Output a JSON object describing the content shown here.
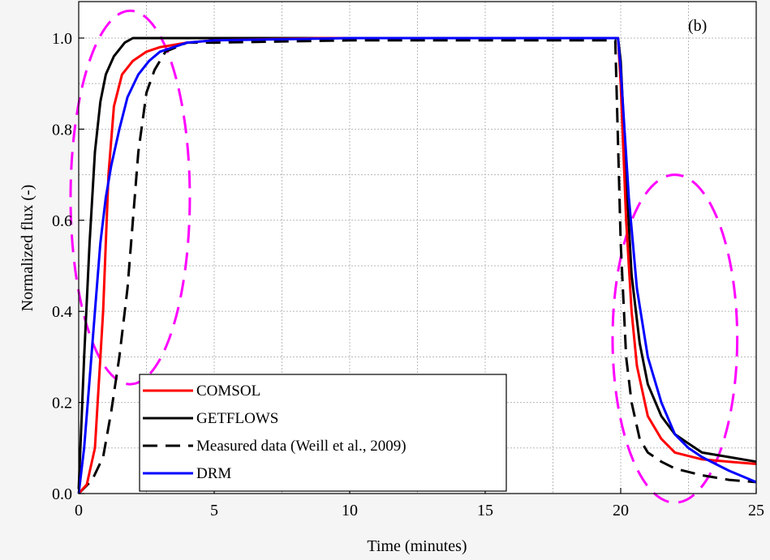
{
  "chart_data": {
    "type": "line",
    "title": "",
    "panel_label": "(b)",
    "xlabel": "Time (minutes)",
    "ylabel": "Normalized flux (-)",
    "xlim": [
      0,
      25
    ],
    "ylim": [
      0,
      1.08
    ],
    "x_ticks": [
      0,
      5,
      10,
      15,
      20,
      25
    ],
    "x_tick_labels": [
      "0",
      "5",
      "10",
      "15",
      "20",
      "25"
    ],
    "y_ticks": [
      0.0,
      0.2,
      0.4,
      0.6,
      0.8,
      1.0
    ],
    "y_tick_labels": [
      "0.0",
      "0.2",
      "0.4",
      "0.6",
      "0.8",
      "1.0"
    ],
    "grid": true,
    "legend_position": "bottom-left",
    "series": [
      {
        "name": "COMSOL",
        "color": "#ff0000",
        "dash": "solid",
        "points": [
          [
            0,
            0
          ],
          [
            0.3,
            0.02
          ],
          [
            0.6,
            0.1
          ],
          [
            0.9,
            0.4
          ],
          [
            1.1,
            0.7
          ],
          [
            1.3,
            0.85
          ],
          [
            1.6,
            0.92
          ],
          [
            2.0,
            0.95
          ],
          [
            2.5,
            0.97
          ],
          [
            3.0,
            0.98
          ],
          [
            4.0,
            0.99
          ],
          [
            5,
            0.995
          ],
          [
            9,
            1.0
          ],
          [
            14,
            1.0
          ],
          [
            19.9,
            1.0
          ],
          [
            20.0,
            0.9
          ],
          [
            20.2,
            0.6
          ],
          [
            20.4,
            0.4
          ],
          [
            20.6,
            0.28
          ],
          [
            21.0,
            0.17
          ],
          [
            21.5,
            0.12
          ],
          [
            22.0,
            0.09
          ],
          [
            23.0,
            0.075
          ],
          [
            24.0,
            0.07
          ],
          [
            25,
            0.065
          ]
        ]
      },
      {
        "name": "GETFLOWS",
        "color": "#000000",
        "dash": "solid",
        "points": [
          [
            0,
            0.01
          ],
          [
            0.2,
            0.3
          ],
          [
            0.4,
            0.55
          ],
          [
            0.6,
            0.75
          ],
          [
            0.8,
            0.86
          ],
          [
            1.0,
            0.92
          ],
          [
            1.3,
            0.96
          ],
          [
            1.7,
            0.99
          ],
          [
            2.0,
            1.0
          ],
          [
            5,
            1.0
          ],
          [
            10,
            1.0
          ],
          [
            19.9,
            1.0
          ],
          [
            20.0,
            0.95
          ],
          [
            20.2,
            0.7
          ],
          [
            20.4,
            0.48
          ],
          [
            20.7,
            0.33
          ],
          [
            21.0,
            0.24
          ],
          [
            21.5,
            0.17
          ],
          [
            22.0,
            0.13
          ],
          [
            22.5,
            0.11
          ],
          [
            23.0,
            0.09
          ],
          [
            24.0,
            0.08
          ],
          [
            25,
            0.07
          ]
        ]
      },
      {
        "name": "Measured data (Weill et al., 2009)",
        "color": "#000000",
        "dash": "dashed",
        "points": [
          [
            0,
            0
          ],
          [
            0.5,
            0.03
          ],
          [
            0.9,
            0.08
          ],
          [
            1.2,
            0.18
          ],
          [
            1.5,
            0.3
          ],
          [
            1.8,
            0.45
          ],
          [
            2.0,
            0.6
          ],
          [
            2.2,
            0.75
          ],
          [
            2.5,
            0.88
          ],
          [
            2.8,
            0.93
          ],
          [
            3.2,
            0.97
          ],
          [
            4.0,
            0.99
          ],
          [
            5,
            0.99
          ],
          [
            10,
            0.995
          ],
          [
            19.8,
            0.995
          ],
          [
            20.0,
            0.55
          ],
          [
            20.2,
            0.3
          ],
          [
            20.4,
            0.2
          ],
          [
            20.7,
            0.12
          ],
          [
            21.0,
            0.09
          ],
          [
            21.5,
            0.07
          ],
          [
            22.0,
            0.055
          ],
          [
            23.0,
            0.04
          ],
          [
            24.0,
            0.03
          ],
          [
            25,
            0.025
          ]
        ]
      },
      {
        "name": "DRM",
        "color": "#0000ff",
        "dash": "solid",
        "points": [
          [
            0,
            0
          ],
          [
            0.2,
            0.1
          ],
          [
            0.4,
            0.25
          ],
          [
            0.6,
            0.4
          ],
          [
            0.8,
            0.55
          ],
          [
            1.0,
            0.65
          ],
          [
            1.2,
            0.72
          ],
          [
            1.5,
            0.8
          ],
          [
            1.8,
            0.87
          ],
          [
            2.2,
            0.92
          ],
          [
            2.6,
            0.95
          ],
          [
            3.0,
            0.97
          ],
          [
            4.0,
            0.99
          ],
          [
            5,
            0.995
          ],
          [
            10,
            1.0
          ],
          [
            19.9,
            1.0
          ],
          [
            20.0,
            0.93
          ],
          [
            20.3,
            0.65
          ],
          [
            20.6,
            0.45
          ],
          [
            21.0,
            0.3
          ],
          [
            21.5,
            0.2
          ],
          [
            22.0,
            0.13
          ],
          [
            22.5,
            0.1
          ],
          [
            23.0,
            0.08
          ],
          [
            24.0,
            0.05
          ],
          [
            25,
            0.025
          ]
        ]
      }
    ],
    "annotations": [
      {
        "kind": "dashed-ellipse",
        "color": "#ff00ff",
        "cx": 1.9,
        "cy": 0.65,
        "rx": 2.2,
        "ry": 0.41
      },
      {
        "kind": "dashed-ellipse",
        "color": "#ff00ff",
        "cx": 22.0,
        "cy": 0.34,
        "rx": 2.3,
        "ry": 0.36
      }
    ]
  }
}
